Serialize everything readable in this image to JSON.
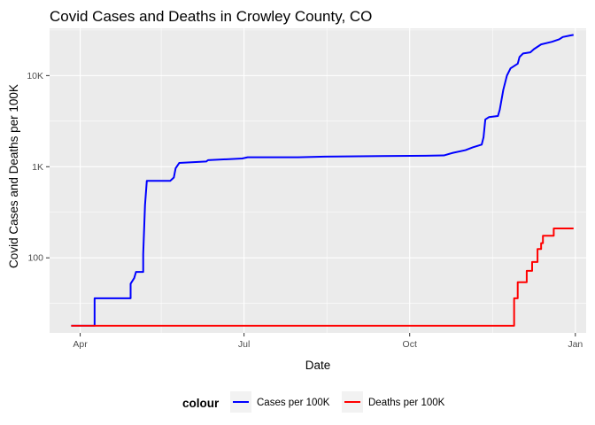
{
  "chart_data": {
    "type": "line",
    "title": "Covid Cases and Deaths in Crowley County, CO",
    "xlabel": "Date",
    "ylabel": "Covid Cases and Deaths per 100K",
    "y_scale": "log10",
    "ylim": [
      15,
      33000
    ],
    "xlim": [
      "2020-03-15",
      "2021-01-07"
    ],
    "x_ticks": [
      {
        "date": "2020-04-01",
        "label": "Apr"
      },
      {
        "date": "2020-07-01",
        "label": "Jul"
      },
      {
        "date": "2020-10-01",
        "label": "Oct"
      },
      {
        "date": "2021-01-01",
        "label": "Jan"
      }
    ],
    "y_ticks": [
      {
        "value": 100,
        "label": "100"
      },
      {
        "value": 1000,
        "label": "1K"
      },
      {
        "value": 10000,
        "label": "10K"
      }
    ],
    "grid": true,
    "legend_title": "colour",
    "legend_position": "bottom",
    "series": [
      {
        "name": "Cases per 100K",
        "color": "#0000ff",
        "step": true,
        "points": [
          [
            "2020-03-27",
            18
          ],
          [
            "2020-04-09",
            18
          ],
          [
            "2020-04-09",
            36
          ],
          [
            "2020-04-29",
            36
          ],
          [
            "2020-04-29",
            52
          ],
          [
            "2020-05-01",
            60
          ],
          [
            "2020-05-02",
            70
          ],
          [
            "2020-05-06",
            70
          ],
          [
            "2020-05-06",
            110
          ],
          [
            "2020-05-07",
            380
          ],
          [
            "2020-05-08",
            700
          ],
          [
            "2020-05-21",
            700
          ],
          [
            "2020-05-23",
            760
          ],
          [
            "2020-05-24",
            960
          ],
          [
            "2020-05-26",
            1100
          ],
          [
            "2020-06-10",
            1140
          ],
          [
            "2020-06-11",
            1180
          ],
          [
            "2020-06-30",
            1230
          ],
          [
            "2020-07-03",
            1270
          ],
          [
            "2020-07-31",
            1270
          ],
          [
            "2020-08-15",
            1290
          ],
          [
            "2020-09-15",
            1310
          ],
          [
            "2020-10-10",
            1320
          ],
          [
            "2020-10-20",
            1330
          ],
          [
            "2020-10-25",
            1420
          ],
          [
            "2020-11-01",
            1520
          ],
          [
            "2020-11-05",
            1630
          ],
          [
            "2020-11-10",
            1750
          ],
          [
            "2020-11-11",
            2100
          ],
          [
            "2020-11-12",
            3300
          ],
          [
            "2020-11-14",
            3500
          ],
          [
            "2020-11-19",
            3600
          ],
          [
            "2020-11-20",
            4200
          ],
          [
            "2020-11-22",
            7000
          ],
          [
            "2020-11-24",
            10000
          ],
          [
            "2020-11-26",
            12000
          ],
          [
            "2020-11-30",
            13500
          ],
          [
            "2020-12-01",
            16000
          ],
          [
            "2020-12-03",
            17500
          ],
          [
            "2020-12-07",
            18000
          ],
          [
            "2020-12-09",
            19500
          ],
          [
            "2020-12-13",
            22000
          ],
          [
            "2020-12-19",
            23500
          ],
          [
            "2020-12-23",
            25000
          ],
          [
            "2020-12-25",
            26500
          ],
          [
            "2020-12-29",
            27500
          ],
          [
            "2020-12-31",
            28000
          ]
        ]
      },
      {
        "name": "Deaths per 100K",
        "color": "#ff0000",
        "step": true,
        "points": [
          [
            "2020-03-27",
            18
          ],
          [
            "2020-11-28",
            18
          ],
          [
            "2020-11-28",
            36
          ],
          [
            "2020-11-30",
            36
          ],
          [
            "2020-11-30",
            54
          ],
          [
            "2020-12-05",
            54
          ],
          [
            "2020-12-05",
            72
          ],
          [
            "2020-12-08",
            72
          ],
          [
            "2020-12-08",
            90
          ],
          [
            "2020-12-11",
            90
          ],
          [
            "2020-12-11",
            125
          ],
          [
            "2020-12-13",
            125
          ],
          [
            "2020-12-13",
            145
          ],
          [
            "2020-12-14",
            145
          ],
          [
            "2020-12-14",
            175
          ],
          [
            "2020-12-20",
            175
          ],
          [
            "2020-12-20",
            210
          ],
          [
            "2020-12-31",
            210
          ]
        ]
      }
    ]
  }
}
